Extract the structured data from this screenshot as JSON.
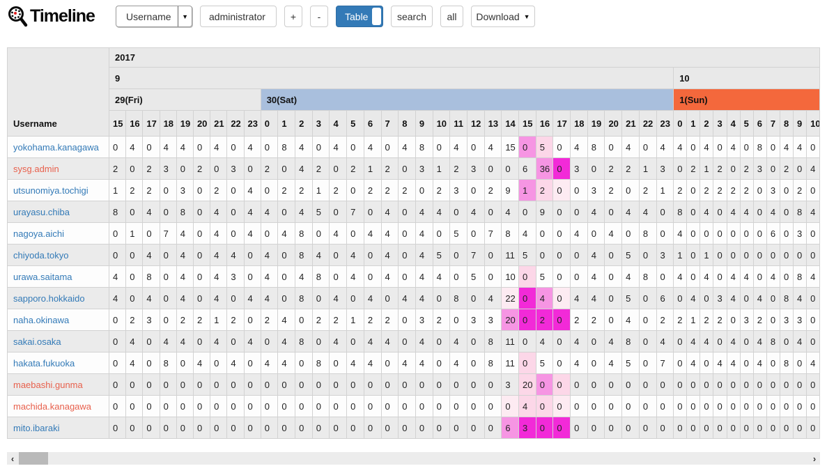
{
  "toolbar": {
    "logo": "Timeline",
    "field_select_value": "Username",
    "select_caret": "▼",
    "search_value": "administrator",
    "zoom_in_label": "+",
    "zoom_out_label": "-",
    "view_toggle_label": "Table",
    "search_button_label": "search",
    "all_button_label": "all",
    "download_label": "Download",
    "download_caret": "▼"
  },
  "calendar": {
    "year": "2017",
    "months": [
      {
        "label": "9",
        "days": [
          {
            "label": "29(Fri)",
            "kind": "weekday",
            "hours": [
              "15",
              "16",
              "17",
              "18",
              "19",
              "20",
              "21",
              "22",
              "23"
            ]
          },
          {
            "label": "30(Sat)",
            "kind": "saturday",
            "hours": [
              "0",
              "1",
              "2",
              "3",
              "4",
              "5",
              "6",
              "7",
              "8",
              "9",
              "10",
              "11",
              "12",
              "13",
              "14",
              "15",
              "16",
              "17",
              "18",
              "19",
              "20",
              "21",
              "22",
              "23"
            ]
          }
        ]
      },
      {
        "label": "10",
        "days": [
          {
            "label": "1(Sun)",
            "kind": "sunday",
            "hours": [
              "0",
              "1",
              "2",
              "3",
              "4",
              "5",
              "6",
              "7",
              "8",
              "9",
              "10"
            ]
          }
        ]
      }
    ]
  },
  "table": {
    "corner_label": "Username",
    "rows": [
      {
        "username": "yokohama.kanagawa",
        "style": "blue",
        "values": [
          0,
          4,
          0,
          4,
          4,
          0,
          4,
          0,
          4,
          0,
          8,
          4,
          0,
          4,
          0,
          4,
          0,
          4,
          8,
          0,
          4,
          0,
          4,
          15,
          0,
          5,
          0,
          4,
          8,
          0,
          4,
          0,
          4,
          4,
          0,
          4,
          0,
          4,
          0,
          8,
          0,
          4,
          4,
          0
        ],
        "highlights": {
          "24": 3,
          "25": 2
        }
      },
      {
        "username": "sysg.admin",
        "style": "orange",
        "values": [
          2,
          0,
          2,
          3,
          0,
          2,
          0,
          3,
          0,
          2,
          0,
          4,
          2,
          0,
          2,
          1,
          2,
          0,
          3,
          1,
          2,
          3,
          0,
          0,
          6,
          36,
          0,
          3,
          0,
          2,
          2,
          1,
          3,
          0,
          2,
          1,
          2,
          0,
          2,
          3,
          0,
          2,
          0,
          4
        ],
        "highlights": {
          "25": 3,
          "26": 4
        }
      },
      {
        "username": "utsunomiya.tochigi",
        "style": "blue",
        "values": [
          1,
          2,
          2,
          0,
          3,
          0,
          2,
          0,
          4,
          0,
          2,
          2,
          1,
          2,
          0,
          2,
          2,
          2,
          0,
          2,
          3,
          0,
          2,
          9,
          1,
          2,
          0,
          0,
          3,
          2,
          0,
          2,
          1,
          2,
          0,
          2,
          2,
          2,
          2,
          0,
          3,
          0,
          2,
          0
        ],
        "highlights": {
          "24": 3,
          "25": 2,
          "26": 1
        }
      },
      {
        "username": "urayasu.chiba",
        "style": "blue",
        "values": [
          8,
          0,
          4,
          0,
          8,
          0,
          4,
          0,
          4,
          4,
          0,
          4,
          5,
          0,
          7,
          0,
          4,
          0,
          4,
          4,
          0,
          4,
          0,
          4,
          0,
          9,
          0,
          0,
          4,
          0,
          4,
          4,
          0,
          8,
          0,
          4,
          0,
          4,
          4,
          0,
          4,
          0,
          8,
          4
        ],
        "highlights": {}
      },
      {
        "username": "nagoya.aichi",
        "style": "blue",
        "values": [
          0,
          1,
          0,
          7,
          4,
          0,
          4,
          0,
          4,
          0,
          4,
          8,
          0,
          4,
          0,
          4,
          4,
          0,
          4,
          0,
          5,
          0,
          7,
          8,
          4,
          0,
          0,
          4,
          0,
          4,
          0,
          8,
          0,
          4,
          0,
          0,
          0,
          0,
          0,
          0,
          6,
          0,
          3,
          0
        ],
        "highlights": {}
      },
      {
        "username": "chiyoda.tokyo",
        "style": "blue",
        "values": [
          0,
          0,
          4,
          0,
          4,
          0,
          4,
          4,
          0,
          4,
          0,
          8,
          4,
          0,
          4,
          0,
          4,
          0,
          4,
          5,
          0,
          7,
          0,
          11,
          5,
          0,
          0,
          0,
          4,
          0,
          5,
          0,
          3,
          1,
          0,
          1,
          0,
          0,
          0,
          0,
          0,
          0,
          0,
          0
        ],
        "highlights": {}
      },
      {
        "username": "urawa.saitama",
        "style": "blue",
        "values": [
          4,
          0,
          8,
          0,
          4,
          0,
          4,
          3,
          0,
          4,
          0,
          4,
          8,
          0,
          4,
          0,
          4,
          0,
          4,
          4,
          0,
          5,
          0,
          10,
          0,
          5,
          0,
          0,
          4,
          0,
          4,
          8,
          0,
          4,
          0,
          4,
          0,
          4,
          4,
          0,
          4,
          0,
          8,
          4
        ],
        "highlights": {
          "24": 2
        }
      },
      {
        "username": "sapporo.hokkaido",
        "style": "blue",
        "values": [
          4,
          0,
          4,
          0,
          4,
          0,
          4,
          0,
          4,
          4,
          0,
          8,
          0,
          4,
          0,
          4,
          0,
          4,
          4,
          0,
          8,
          0,
          4,
          22,
          0,
          4,
          0,
          4,
          4,
          0,
          5,
          0,
          6,
          0,
          4,
          0,
          3,
          4,
          0,
          4,
          0,
          8,
          4,
          0
        ],
        "highlights": {
          "23": 1,
          "24": 4,
          "25": 3,
          "26": 1
        }
      },
      {
        "username": "naha.okinawa",
        "style": "blue",
        "values": [
          0,
          2,
          3,
          0,
          2,
          2,
          1,
          2,
          0,
          2,
          4,
          0,
          2,
          2,
          1,
          2,
          2,
          0,
          3,
          2,
          0,
          3,
          3,
          20,
          0,
          2,
          0,
          2,
          2,
          0,
          4,
          0,
          2,
          2,
          1,
          2,
          2,
          0,
          3,
          2,
          0,
          3,
          3,
          0
        ],
        "highlights": {
          "23": 3,
          "24": 4,
          "25": 4,
          "26": 4
        }
      },
      {
        "username": "sakai.osaka",
        "style": "blue",
        "values": [
          0,
          4,
          0,
          4,
          4,
          0,
          4,
          0,
          4,
          0,
          4,
          8,
          0,
          4,
          0,
          4,
          4,
          0,
          4,
          0,
          4,
          0,
          8,
          11,
          0,
          4,
          0,
          4,
          0,
          4,
          8,
          0,
          4,
          0,
          4,
          4,
          0,
          4,
          0,
          4,
          8,
          0,
          4,
          0
        ],
        "highlights": {}
      },
      {
        "username": "hakata.fukuoka",
        "style": "blue",
        "values": [
          0,
          4,
          0,
          8,
          0,
          4,
          0,
          4,
          0,
          4,
          4,
          0,
          8,
          0,
          4,
          4,
          0,
          4,
          4,
          0,
          4,
          0,
          8,
          11,
          0,
          5,
          0,
          4,
          0,
          4,
          5,
          0,
          7,
          0,
          4,
          0,
          4,
          4,
          0,
          4,
          0,
          8,
          0,
          4
        ],
        "highlights": {
          "24": 2
        }
      },
      {
        "username": "maebashi.gunma",
        "style": "orange",
        "values": [
          0,
          0,
          0,
          0,
          0,
          0,
          0,
          0,
          0,
          0,
          0,
          0,
          0,
          0,
          0,
          0,
          0,
          0,
          0,
          0,
          0,
          0,
          0,
          3,
          20,
          0,
          0,
          0,
          0,
          0,
          0,
          0,
          0,
          0,
          0,
          0,
          0,
          0,
          0,
          0,
          0,
          0,
          0,
          0
        ],
        "highlights": {
          "24": 2,
          "25": 3,
          "26": 2
        }
      },
      {
        "username": "machida.kanagawa",
        "style": "orange",
        "values": [
          0,
          0,
          0,
          0,
          0,
          0,
          0,
          0,
          0,
          0,
          0,
          0,
          0,
          0,
          0,
          0,
          0,
          0,
          0,
          0,
          0,
          0,
          0,
          0,
          4,
          0,
          0,
          0,
          0,
          0,
          0,
          0,
          0,
          0,
          0,
          0,
          0,
          0,
          0,
          0,
          0,
          0,
          0,
          0
        ],
        "highlights": {
          "23": 1,
          "24": 2,
          "25": 2,
          "26": 1
        }
      },
      {
        "username": "mito.ibaraki",
        "style": "blue",
        "values": [
          0,
          0,
          0,
          0,
          0,
          0,
          0,
          0,
          0,
          0,
          0,
          0,
          0,
          0,
          0,
          0,
          0,
          0,
          0,
          0,
          0,
          0,
          0,
          6,
          3,
          0,
          0,
          0,
          0,
          0,
          0,
          0,
          0,
          0,
          0,
          0,
          0,
          0,
          0,
          0,
          0,
          0,
          0,
          0
        ],
        "highlights": {
          "23": 3,
          "24": 4,
          "25": 4,
          "26": 4
        }
      }
    ]
  },
  "colors": {
    "link_blue": "#337ab7",
    "link_orange": "#e8604c",
    "saturday_header": "#a9bfdd",
    "sunday_header": "#f4683c",
    "heat": [
      "#fdebf2",
      "#fcd7e8",
      "#f695e3",
      "#f22ad8"
    ]
  },
  "scrollbar": {
    "left_arrow": "‹",
    "right_arrow": "›"
  }
}
